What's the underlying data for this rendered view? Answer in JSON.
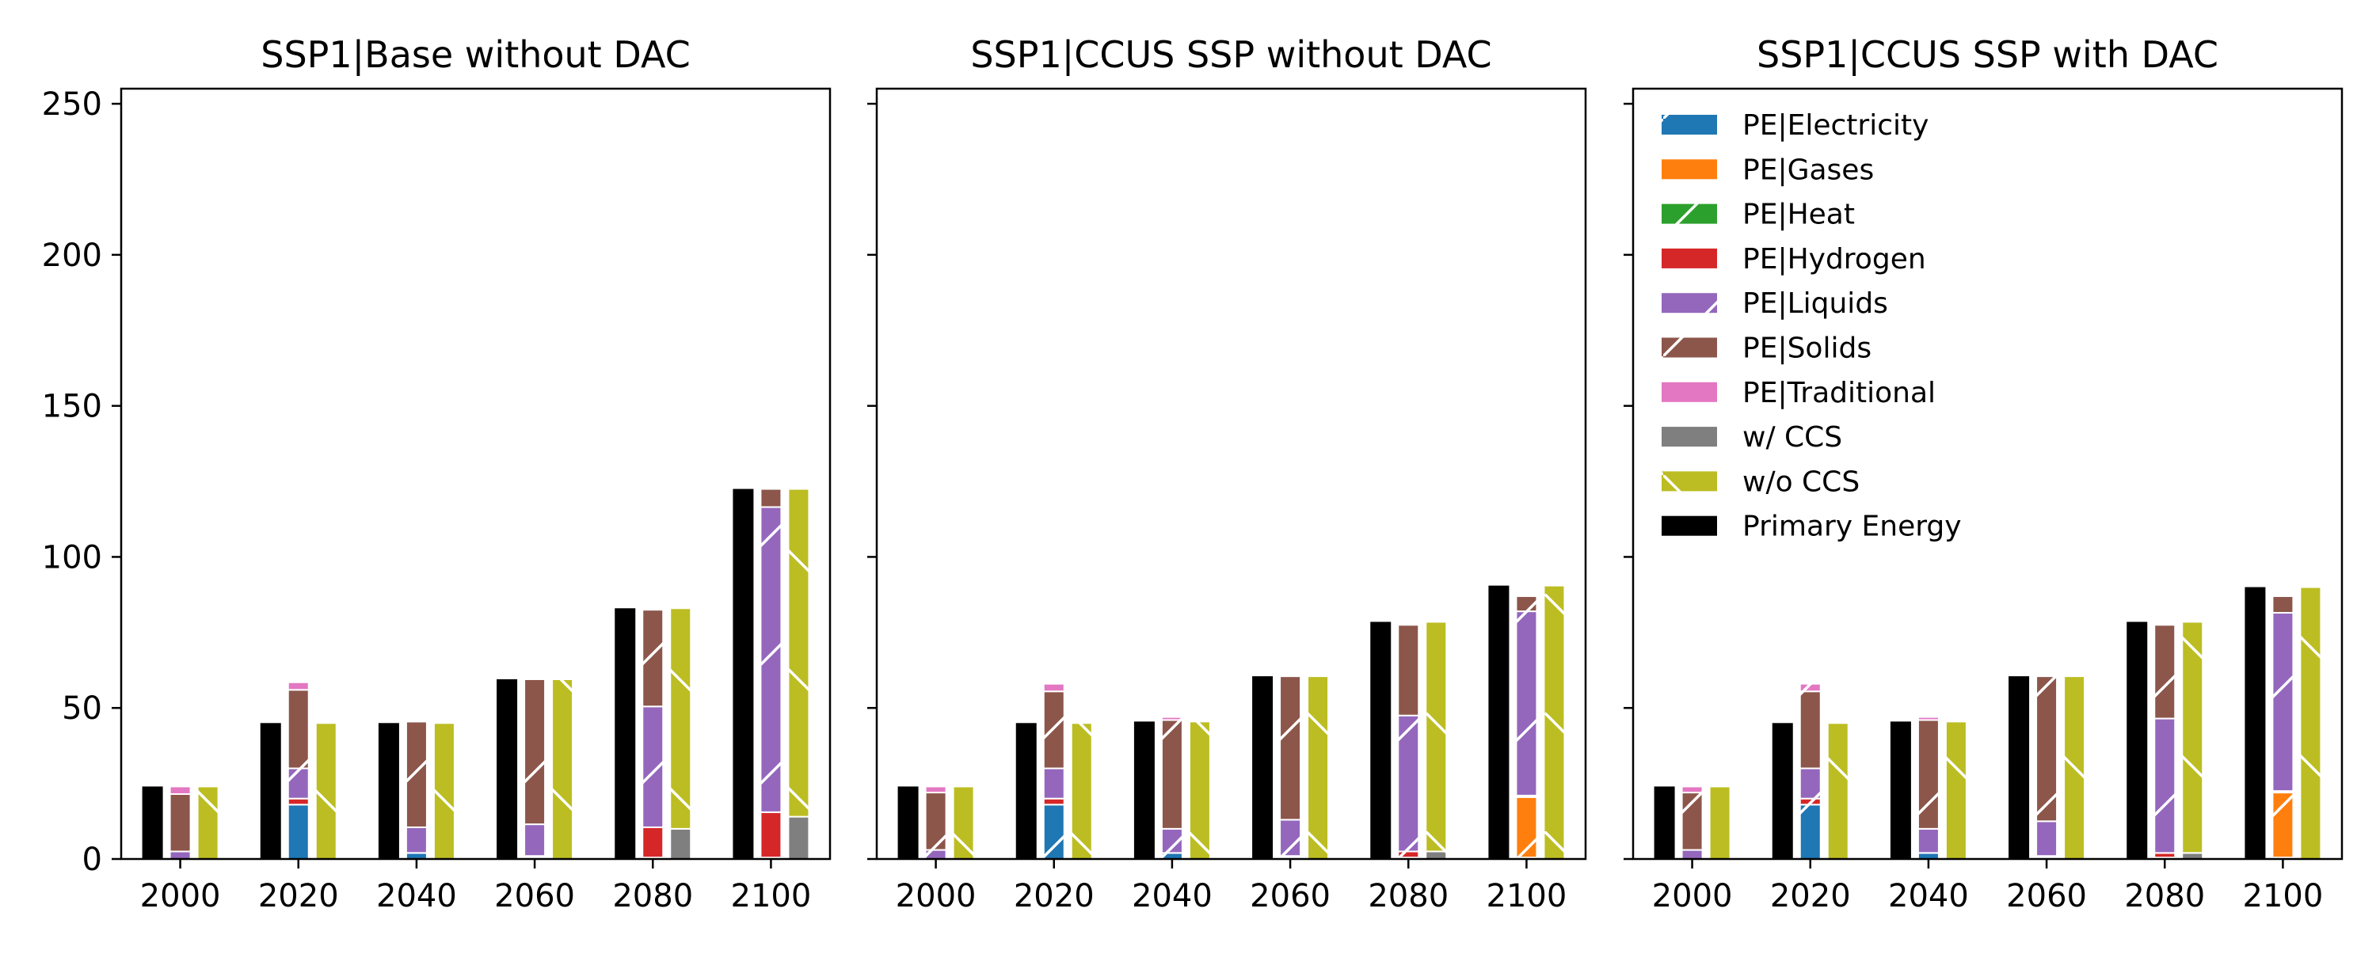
{
  "chart_data": {
    "type": "bar",
    "layout": "three side-by-side panels, shared y axis; each period shows three bars: primary energy total, stacked by fuel, stacked by CCS",
    "categories": [
      "2000",
      "2020",
      "2040",
      "2060",
      "2080",
      "2100"
    ],
    "yticks": [
      "0",
      "50",
      "100",
      "150",
      "200",
      "250"
    ],
    "ylim": [
      0,
      255
    ],
    "legend": {
      "location": "upper-left of third panel"
    },
    "series_styles": [
      {
        "key": "electricity",
        "name": "PE|Electricity",
        "color": "#1f77b4",
        "hatch": "/"
      },
      {
        "key": "gases",
        "name": "PE|Gases",
        "color": "#ff7f0e",
        "hatch": "/"
      },
      {
        "key": "heat",
        "name": "PE|Heat",
        "color": "#2ca02c",
        "hatch": "/"
      },
      {
        "key": "hydrogen",
        "name": "PE|Hydrogen",
        "color": "#d62728",
        "hatch": "/"
      },
      {
        "key": "liquids",
        "name": "PE|Liquids",
        "color": "#9467bd",
        "hatch": "/"
      },
      {
        "key": "solids",
        "name": "PE|Solids",
        "color": "#8c564b",
        "hatch": "/"
      },
      {
        "key": "traditional",
        "name": "PE|Traditional",
        "color": "#e377c2",
        "hatch": "/"
      },
      {
        "key": "ccs",
        "name": "w/ CCS",
        "color": "#7f7f7f",
        "hatch": "\\"
      },
      {
        "key": "noccs",
        "name": "w/o CCS",
        "color": "#bcbd22",
        "hatch": "\\"
      },
      {
        "key": "primary",
        "name": "Primary Energy",
        "color": "#000000",
        "hatch": ""
      }
    ],
    "fuel_stack_order": [
      "electricity",
      "gases",
      "heat",
      "hydrogen",
      "liquids",
      "solids",
      "traditional"
    ],
    "ccs_stack_order": [
      "ccs",
      "noccs"
    ],
    "panels": [
      {
        "title": "SSP1|Base without DAC",
        "primary": [
          24,
          45,
          45,
          59.5,
          83,
          122.5
        ],
        "fuels": {
          "electricity": [
            0,
            18,
            2,
            0.5,
            0.5,
            0.5
          ],
          "gases": [
            0,
            0,
            0,
            0,
            0,
            0
          ],
          "heat": [
            0,
            0,
            0,
            0,
            0,
            0
          ],
          "hydrogen": [
            0,
            2,
            0,
            0.5,
            10,
            15
          ],
          "liquids": [
            2.5,
            10,
            8.5,
            10.5,
            40,
            101
          ],
          "solids": [
            19,
            26,
            35,
            48,
            32,
            6
          ],
          "traditional": [
            2.5,
            2.5,
            0.5,
            0,
            0,
            0
          ]
        },
        "ccs": {
          "ccs": [
            0,
            0,
            0,
            0,
            10,
            14
          ],
          "noccs": [
            24,
            45,
            45,
            59.5,
            73,
            108.5
          ]
        }
      },
      {
        "title": "SSP1|CCUS SSP without DAC",
        "primary": [
          24,
          45,
          45.5,
          60.5,
          78.5,
          90.5
        ],
        "fuels": {
          "electricity": [
            0,
            18,
            2,
            0.5,
            0.5,
            0.5
          ],
          "gases": [
            0,
            0,
            0,
            0,
            0,
            20
          ],
          "heat": [
            0,
            0,
            0,
            0,
            0,
            0
          ],
          "hydrogen": [
            0,
            2,
            0,
            0.5,
            2,
            0.5
          ],
          "liquids": [
            3,
            10,
            8,
            12,
            45,
            61
          ],
          "solids": [
            19,
            25.5,
            36,
            47.5,
            30,
            5
          ],
          "traditional": [
            2,
            2.5,
            1,
            0,
            0,
            0
          ]
        },
        "ccs": {
          "ccs": [
            0,
            0,
            0,
            0,
            2.5,
            0
          ],
          "noccs": [
            24,
            45,
            45.5,
            60.5,
            76,
            90.5
          ]
        }
      },
      {
        "title": "SSP1|CCUS SSP with DAC",
        "primary": [
          24,
          45,
          45.5,
          60.5,
          78.5,
          90
        ],
        "fuels": {
          "electricity": [
            0,
            18,
            2,
            0.5,
            0.5,
            0.5
          ],
          "gases": [
            0,
            0,
            0,
            0,
            0,
            21.5
          ],
          "heat": [
            0,
            0,
            0,
            0,
            0,
            0
          ],
          "hydrogen": [
            0,
            2,
            0,
            0.5,
            1.5,
            0.5
          ],
          "liquids": [
            3,
            10,
            8,
            11.5,
            44.5,
            59
          ],
          "solids": [
            19,
            25.5,
            36,
            48,
            31,
            5.5
          ],
          "traditional": [
            2,
            2.5,
            1,
            0,
            0,
            0
          ]
        },
        "ccs": {
          "ccs": [
            0,
            0,
            0,
            0,
            2,
            0
          ],
          "noccs": [
            24,
            45,
            45.5,
            60.5,
            76.5,
            90
          ]
        }
      }
    ]
  }
}
